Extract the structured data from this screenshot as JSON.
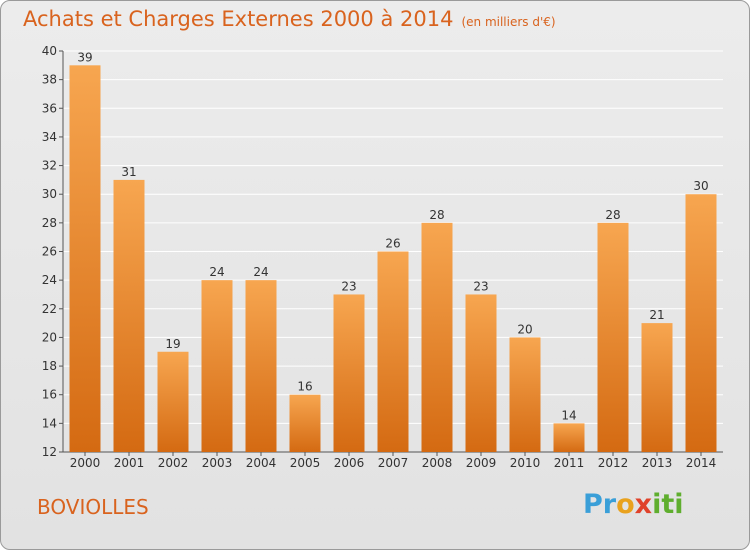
{
  "title": "Achats et Charges Externes 2000 à 2014",
  "subtitle": "(en milliers d'€)",
  "place": "BOVIOLLES",
  "logo": "Proxiti",
  "colors": {
    "title": "#d9631e",
    "bar_top": "#f7a650",
    "bar_bottom": "#d46a12",
    "grid": "#ffffff"
  },
  "chart_data": {
    "type": "bar",
    "categories": [
      "2000",
      "2001",
      "2002",
      "2003",
      "2004",
      "2005",
      "2006",
      "2007",
      "2008",
      "2009",
      "2010",
      "2011",
      "2012",
      "2013",
      "2014"
    ],
    "values": [
      39,
      31,
      19,
      24,
      24,
      16,
      23,
      26,
      28,
      23,
      20,
      14,
      28,
      21,
      30
    ],
    "ylim": [
      12,
      40
    ],
    "yticks": [
      12,
      14,
      16,
      18,
      20,
      22,
      24,
      26,
      28,
      30,
      32,
      34,
      36,
      38,
      40
    ],
    "grid": true
  }
}
